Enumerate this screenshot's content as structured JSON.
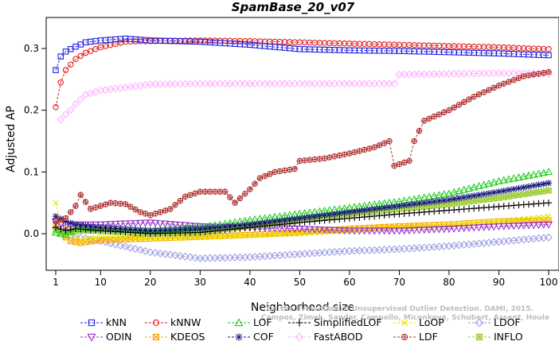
{
  "chart_data": {
    "type": "line",
    "title": "SpamBase_20_v07",
    "xlabel": "Neighborhood size",
    "ylabel": "Adjusted AP",
    "xlim": [
      1,
      100
    ],
    "ylim": [
      -0.05,
      0.33
    ],
    "xticks": [
      1,
      10,
      20,
      30,
      40,
      50,
      60,
      70,
      80,
      90,
      100
    ],
    "yticks": [
      0.0,
      0.1,
      0.2,
      0.3
    ],
    "ytick_labels": [
      "0.0",
      "0.1",
      "0.2",
      "0.3"
    ],
    "grid": false,
    "legend_position": "bottom",
    "watermark": [
      "Campos, Zimek, Sander, Campello, Micenkova, Schubert, Assent, Houle",
      "On the Evaluation of Unsupervised Outlier Detection. DAMI, 2015."
    ],
    "series": [
      {
        "name": "kNN",
        "color": "#1f1fe0",
        "marker": "square",
        "keypoints": [
          [
            1,
            0.265
          ],
          [
            2,
            0.287
          ],
          [
            3,
            0.295
          ],
          [
            5,
            0.303
          ],
          [
            7,
            0.31
          ],
          [
            10,
            0.313
          ],
          [
            15,
            0.316
          ],
          [
            20,
            0.313
          ],
          [
            30,
            0.311
          ],
          [
            40,
            0.306
          ],
          [
            50,
            0.299
          ],
          [
            60,
            0.297
          ],
          [
            70,
            0.296
          ],
          [
            80,
            0.294
          ],
          [
            90,
            0.292
          ],
          [
            100,
            0.289
          ]
        ]
      },
      {
        "name": "kNNW",
        "color": "#e01f1f",
        "marker": "circle",
        "keypoints": [
          [
            1,
            0.205
          ],
          [
            2,
            0.245
          ],
          [
            3,
            0.265
          ],
          [
            5,
            0.283
          ],
          [
            7,
            0.293
          ],
          [
            10,
            0.302
          ],
          [
            15,
            0.311
          ],
          [
            20,
            0.312
          ],
          [
            30,
            0.313
          ],
          [
            40,
            0.312
          ],
          [
            50,
            0.31
          ],
          [
            60,
            0.308
          ],
          [
            70,
            0.306
          ],
          [
            80,
            0.304
          ],
          [
            90,
            0.302
          ],
          [
            100,
            0.299
          ]
        ]
      },
      {
        "name": "LOF",
        "color": "#22cc22",
        "marker": "triangle",
        "keypoints": [
          [
            1,
            0.002
          ],
          [
            3,
            -0.002
          ],
          [
            5,
            0.008
          ],
          [
            10,
            0.008
          ],
          [
            20,
            0.005
          ],
          [
            30,
            0.01
          ],
          [
            40,
            0.022
          ],
          [
            50,
            0.032
          ],
          [
            60,
            0.042
          ],
          [
            70,
            0.052
          ],
          [
            80,
            0.065
          ],
          [
            90,
            0.085
          ],
          [
            100,
            0.1
          ]
        ]
      },
      {
        "name": "SimplifiedLOF",
        "color": "#000000",
        "marker": "plus",
        "keypoints": [
          [
            1,
            0.01
          ],
          [
            3,
            0.005
          ],
          [
            5,
            0.008
          ],
          [
            10,
            0.005
          ],
          [
            20,
            0.0
          ],
          [
            30,
            0.002
          ],
          [
            40,
            0.01
          ],
          [
            50,
            0.018
          ],
          [
            60,
            0.025
          ],
          [
            70,
            0.032
          ],
          [
            80,
            0.038
          ],
          [
            90,
            0.044
          ],
          [
            100,
            0.05
          ]
        ]
      },
      {
        "name": "LoOP",
        "color": "#e6e600",
        "marker": "x",
        "keypoints": [
          [
            1,
            0.05
          ],
          [
            2,
            0.02
          ],
          [
            4,
            0.0
          ],
          [
            6,
            -0.01
          ],
          [
            10,
            -0.005
          ],
          [
            20,
            -0.008
          ],
          [
            30,
            -0.006
          ],
          [
            40,
            -0.003
          ],
          [
            50,
            0.0
          ],
          [
            60,
            0.005
          ],
          [
            70,
            0.01
          ],
          [
            80,
            0.015
          ],
          [
            90,
            0.02
          ],
          [
            100,
            0.028
          ]
        ]
      },
      {
        "name": "LDOF",
        "color": "#a0a0e6",
        "marker": "diamond",
        "keypoints": [
          [
            1,
            0.01
          ],
          [
            3,
            0.0
          ],
          [
            5,
            -0.005
          ],
          [
            10,
            -0.012
          ],
          [
            20,
            -0.03
          ],
          [
            30,
            -0.04
          ],
          [
            40,
            -0.038
          ],
          [
            50,
            -0.033
          ],
          [
            60,
            -0.028
          ],
          [
            70,
            -0.025
          ],
          [
            80,
            -0.02
          ],
          [
            90,
            -0.013
          ],
          [
            100,
            -0.006
          ]
        ]
      },
      {
        "name": "ODIN",
        "color": "#9933cc",
        "marker": "triangle-down",
        "keypoints": [
          [
            1,
            0.02
          ],
          [
            3,
            0.01
          ],
          [
            5,
            0.015
          ],
          [
            10,
            0.015
          ],
          [
            20,
            0.018
          ],
          [
            30,
            0.012
          ],
          [
            40,
            0.01
          ],
          [
            50,
            0.008
          ],
          [
            60,
            0.005
          ],
          [
            70,
            0.005
          ],
          [
            80,
            0.008
          ],
          [
            90,
            0.012
          ],
          [
            100,
            0.015
          ]
        ]
      },
      {
        "name": "KDEOS",
        "color": "#ffa500",
        "marker": "square-x",
        "keypoints": [
          [
            1,
            0.015
          ],
          [
            2,
            0.0
          ],
          [
            4,
            -0.012
          ],
          [
            6,
            -0.015
          ],
          [
            10,
            -0.01
          ],
          [
            20,
            -0.008
          ],
          [
            30,
            -0.005
          ],
          [
            40,
            -0.002
          ],
          [
            50,
            0.002
          ],
          [
            60,
            0.008
          ],
          [
            70,
            0.012
          ],
          [
            80,
            0.015
          ],
          [
            90,
            0.02
          ],
          [
            100,
            0.022
          ]
        ]
      },
      {
        "name": "COF",
        "color": "#1a1a80",
        "marker": "asterisk",
        "keypoints": [
          [
            1,
            0.028
          ],
          [
            3,
            0.02
          ],
          [
            5,
            0.015
          ],
          [
            10,
            0.01
          ],
          [
            20,
            0.005
          ],
          [
            30,
            0.008
          ],
          [
            40,
            0.015
          ],
          [
            50,
            0.025
          ],
          [
            60,
            0.035
          ],
          [
            70,
            0.045
          ],
          [
            80,
            0.055
          ],
          [
            90,
            0.068
          ],
          [
            100,
            0.082
          ]
        ]
      },
      {
        "name": "FastABOD",
        "color": "#ffb3ff",
        "marker": "diamond",
        "keypoints": [
          [
            2,
            0.185
          ],
          [
            3,
            0.193
          ],
          [
            4,
            0.2
          ],
          [
            5,
            0.21
          ],
          [
            7,
            0.225
          ],
          [
            10,
            0.232
          ],
          [
            15,
            0.237
          ],
          [
            20,
            0.242
          ],
          [
            30,
            0.243
          ],
          [
            40,
            0.243
          ],
          [
            50,
            0.243
          ],
          [
            60,
            0.243
          ],
          [
            69,
            0.243
          ],
          [
            70,
            0.258
          ],
          [
            80,
            0.259
          ],
          [
            90,
            0.26
          ],
          [
            100,
            0.259
          ]
        ]
      },
      {
        "name": "LDF",
        "color": "#b03030",
        "marker": "circle-plus",
        "keypoints": [
          [
            1,
            0.02
          ],
          [
            3,
            0.025
          ],
          [
            5,
            0.045
          ],
          [
            6,
            0.063
          ],
          [
            8,
            0.04
          ],
          [
            10,
            0.045
          ],
          [
            12,
            0.05
          ],
          [
            15,
            0.048
          ],
          [
            18,
            0.035
          ],
          [
            20,
            0.03
          ],
          [
            24,
            0.04
          ],
          [
            27,
            0.06
          ],
          [
            30,
            0.068
          ],
          [
            35,
            0.068
          ],
          [
            37,
            0.05
          ],
          [
            40,
            0.072
          ],
          [
            42,
            0.09
          ],
          [
            45,
            0.1
          ],
          [
            49,
            0.105
          ],
          [
            50,
            0.118
          ],
          [
            55,
            0.122
          ],
          [
            60,
            0.13
          ],
          [
            65,
            0.14
          ],
          [
            68,
            0.15
          ],
          [
            69,
            0.11
          ],
          [
            72,
            0.118
          ],
          [
            73,
            0.15
          ],
          [
            75,
            0.183
          ],
          [
            80,
            0.2
          ],
          [
            85,
            0.222
          ],
          [
            90,
            0.24
          ],
          [
            95,
            0.255
          ],
          [
            100,
            0.262
          ]
        ]
      },
      {
        "name": "INFLO",
        "color": "#9acd32",
        "marker": "square-star",
        "keypoints": [
          [
            1,
            0.005
          ],
          [
            3,
            0.0
          ],
          [
            5,
            0.005
          ],
          [
            10,
            0.005
          ],
          [
            20,
            0.0
          ],
          [
            30,
            0.003
          ],
          [
            40,
            0.012
          ],
          [
            50,
            0.022
          ],
          [
            60,
            0.032
          ],
          [
            70,
            0.04
          ],
          [
            80,
            0.048
          ],
          [
            90,
            0.058
          ],
          [
            100,
            0.07
          ]
        ]
      }
    ]
  },
  "legend_rows": [
    [
      "kNN",
      "kNNW",
      "LOF",
      "SimplifiedLOF",
      "LoOP",
      "LDOF"
    ],
    [
      "ODIN",
      "KDEOS",
      "COF",
      "FastABOD",
      "LDF",
      "INFLO"
    ]
  ]
}
